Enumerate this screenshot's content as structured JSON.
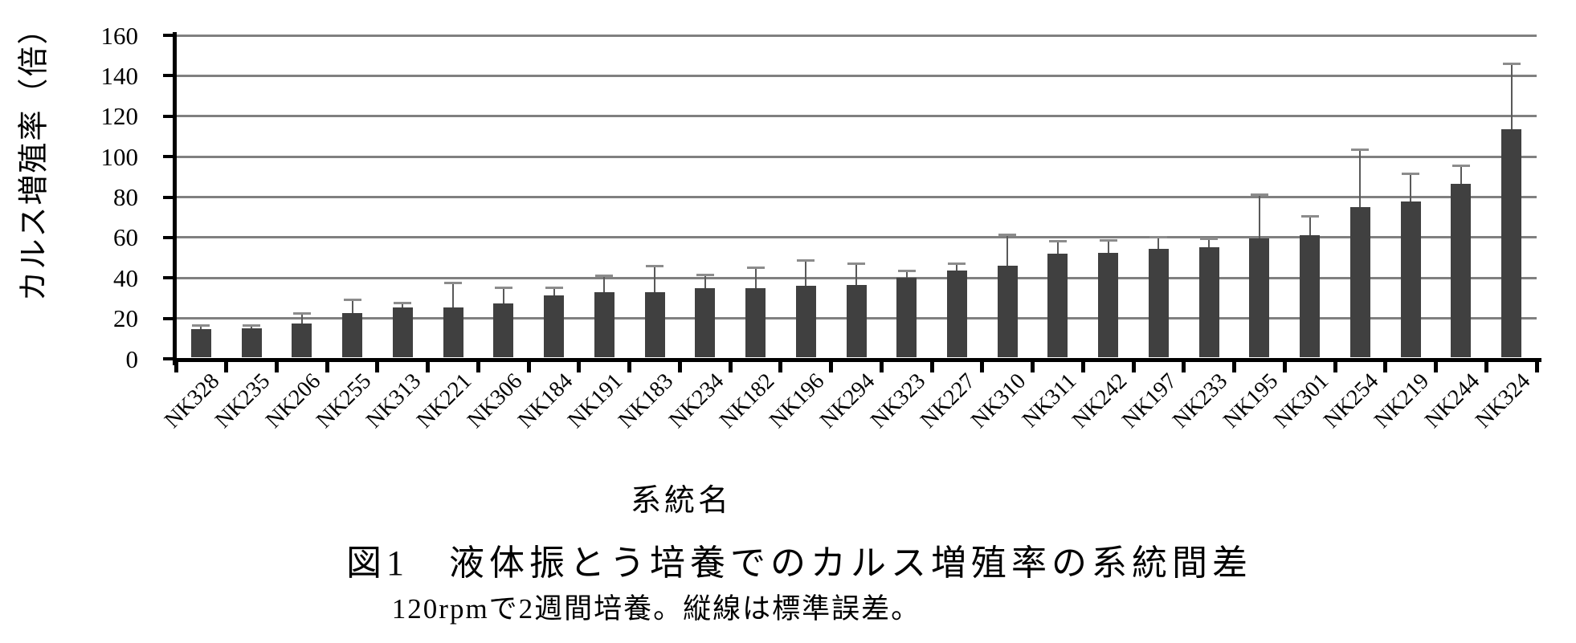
{
  "chart_data": {
    "type": "bar",
    "title": "図1　液体振とう培養でのカルス増殖率の系統間差",
    "subtitle": "120rpmで2週間培養。縦線は標準誤差。",
    "ylabel": "カルス増殖率（倍）",
    "xlabel": "系統名",
    "ylim": [
      0,
      160
    ],
    "yticks": [
      0,
      20,
      40,
      60,
      80,
      100,
      120,
      140,
      160
    ],
    "grid": true,
    "legend": "none",
    "categories": [
      "NK328",
      "NK235",
      "NK206",
      "NK255",
      "NK313",
      "NK221",
      "NK306",
      "NK184",
      "NK191",
      "NK183",
      "NK234",
      "NK182",
      "NK196",
      "NK294",
      "NK323",
      "NK227",
      "NK310",
      "NK311",
      "NK242",
      "NK197",
      "NK233",
      "NK195",
      "NK301",
      "NK254",
      "NK219",
      "NK244",
      "NK324"
    ],
    "values": [
      14.5,
      15,
      17.5,
      22.5,
      25.5,
      25.5,
      27.5,
      31.5,
      33,
      33,
      35,
      35,
      36,
      36.5,
      40,
      43.5,
      46,
      52,
      52.5,
      54.5,
      55,
      59.5,
      61,
      75,
      78,
      86.5,
      113.5
    ],
    "std_errors": [
      2,
      1.5,
      4.8,
      6.5,
      2,
      12,
      7.5,
      3.5,
      8,
      13,
      6.5,
      10,
      12.5,
      10.5,
      3.5,
      3.5,
      15.5,
      6,
      6,
      5.5,
      4.5,
      21.5,
      9.5,
      28.5,
      13.5,
      9,
      32.5
    ]
  },
  "colors": {
    "bar": "#404040",
    "gridline": "#808080",
    "axis": "#000000",
    "error_stem": "#595959",
    "error_cap": "#8c8c8c",
    "background": "#ffffff",
    "text": "#000000"
  }
}
